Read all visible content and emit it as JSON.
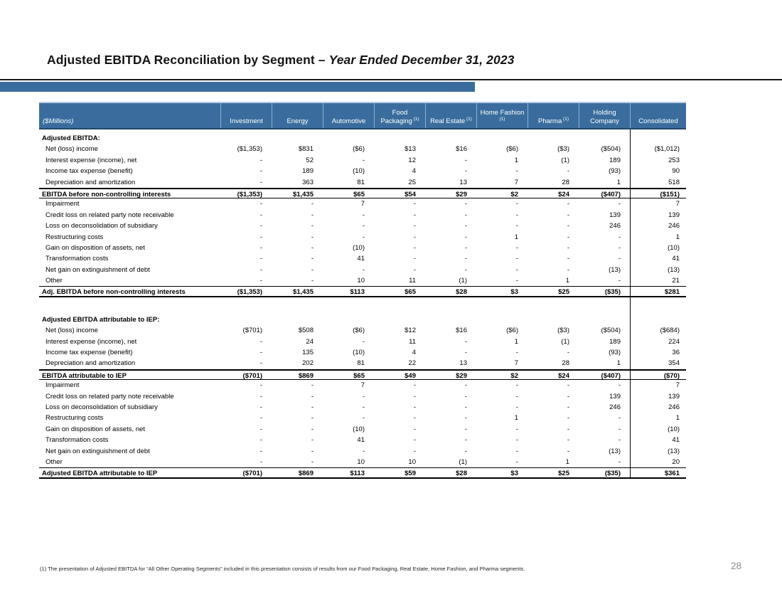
{
  "title": {
    "main": "Adjusted EBITDA Reconciliation by Segment – ",
    "emphasis": "Year Ended December 31, 2023"
  },
  "page_number": "28",
  "footnote": "(1) The presentation of Adjusted EBITDA for “All Other Operating Segments” included in this presentation consists of results from our Food Packaging, Real Estate, Home Fashion, and Pharma segments.",
  "table": {
    "unit_label": "($Millions)",
    "footnote_marker": "(1)",
    "columns": [
      {
        "label": "Investment",
        "footnote": false
      },
      {
        "label": "Energy",
        "footnote": false
      },
      {
        "label": "Automotive",
        "footnote": false
      },
      {
        "label": "Food Packaging",
        "footnote": true
      },
      {
        "label": "Real Estate",
        "footnote": true
      },
      {
        "label": "Home Fashion",
        "footnote": true
      },
      {
        "label": "Pharma",
        "footnote": true
      },
      {
        "label": "Holding Company",
        "footnote": false
      },
      {
        "label": "Consolidated",
        "footnote": false
      }
    ],
    "rows": [
      {
        "type": "section",
        "label": "Adjusted EBITDA:"
      },
      {
        "type": "detail",
        "label": "Net (loss) income",
        "values": [
          "($1,353)",
          "$831",
          "($6)",
          "$13",
          "$16",
          "($6)",
          "($3)",
          "($504)",
          "($1,012)"
        ]
      },
      {
        "type": "detail",
        "label": "Interest expense (income), net",
        "values": [
          "-",
          "52",
          "-",
          "12",
          "-",
          "1",
          "(1)",
          "189",
          "253"
        ]
      },
      {
        "type": "detail",
        "label": "Income tax expense (benefit)",
        "values": [
          "-",
          "189",
          "(10)",
          "4",
          "-",
          "-",
          "-",
          "(93)",
          "90"
        ]
      },
      {
        "type": "detail",
        "label": "Depreciation and amortization",
        "values": [
          "-",
          "363",
          "81",
          "25",
          "13",
          "7",
          "28",
          "1",
          "518"
        ]
      },
      {
        "type": "total",
        "label": "EBITDA before non-controlling interests",
        "values": [
          "($1,353)",
          "$1,435",
          "$65",
          "$54",
          "$29",
          "$2",
          "$24",
          "($407)",
          "($151)"
        ]
      },
      {
        "type": "detail",
        "label": "Impairment",
        "values": [
          "-",
          "-",
          "7",
          "-",
          "-",
          "-",
          "-",
          "-",
          "7"
        ]
      },
      {
        "type": "detail",
        "label": "Credit loss on related party note receivable",
        "values": [
          "-",
          "-",
          "-",
          "-",
          "-",
          "-",
          "-",
          "139",
          "139"
        ]
      },
      {
        "type": "detail",
        "label": "Loss on deconsolidation of subsidiary",
        "values": [
          "-",
          "-",
          "-",
          "-",
          "-",
          "-",
          "-",
          "246",
          "246"
        ]
      },
      {
        "type": "detail",
        "label": "Restructuring costs",
        "values": [
          "-",
          "-",
          "-",
          "-",
          "-",
          "1",
          "-",
          "-",
          "1"
        ]
      },
      {
        "type": "detail",
        "label": "Gain on disposition of assets, net",
        "values": [
          "-",
          "-",
          "(10)",
          "-",
          "-",
          "-",
          "-",
          "-",
          "(10)"
        ]
      },
      {
        "type": "detail",
        "label": "Transformation costs",
        "values": [
          "-",
          "-",
          "41",
          "-",
          "-",
          "-",
          "-",
          "-",
          "41"
        ]
      },
      {
        "type": "detail",
        "label": "Net gain on extinguishment of debt",
        "values": [
          "-",
          "-",
          "-",
          "-",
          "-",
          "-",
          "-",
          "(13)",
          "(13)"
        ]
      },
      {
        "type": "detail",
        "label": "Other",
        "values": [
          "-",
          "-",
          "10",
          "11",
          "(1)",
          "-",
          "1",
          "-",
          "21"
        ]
      },
      {
        "type": "grandtotal",
        "label": "Adj. EBITDA before non-controlling interests",
        "values": [
          "($1,353)",
          "$1,435",
          "$113",
          "$65",
          "$28",
          "$3",
          "$25",
          "($35)",
          "$281"
        ]
      },
      {
        "type": "spacer"
      },
      {
        "type": "section",
        "label": "Adjusted EBITDA attributable to IEP:"
      },
      {
        "type": "detail",
        "label": "Net (loss) income",
        "values": [
          "($701)",
          "$508",
          "($6)",
          "$12",
          "$16",
          "($6)",
          "($3)",
          "($504)",
          "($684)"
        ]
      },
      {
        "type": "detail",
        "label": "Interest expense (income), net",
        "values": [
          "-",
          "24",
          "-",
          "11",
          "-",
          "1",
          "(1)",
          "189",
          "224"
        ]
      },
      {
        "type": "detail",
        "label": "Income tax expense (benefit)",
        "values": [
          "-",
          "135",
          "(10)",
          "4",
          "-",
          "-",
          "-",
          "(93)",
          "36"
        ]
      },
      {
        "type": "detail",
        "label": "Depreciation and amortization",
        "values": [
          "-",
          "202",
          "81",
          "22",
          "13",
          "7",
          "28",
          "1",
          "354"
        ]
      },
      {
        "type": "total",
        "label": "EBITDA attributable to IEP",
        "values": [
          "($701)",
          "$869",
          "$65",
          "$49",
          "$29",
          "$2",
          "$24",
          "($407)",
          "($70)"
        ]
      },
      {
        "type": "detail",
        "label": "Impairment",
        "values": [
          "-",
          "-",
          "7",
          "-",
          "-",
          "-",
          "-",
          "-",
          "7"
        ]
      },
      {
        "type": "detail",
        "label": "Credit loss on related party note receivable",
        "values": [
          "-",
          "-",
          "-",
          "-",
          "-",
          "-",
          "-",
          "139",
          "139"
        ]
      },
      {
        "type": "detail",
        "label": "Loss on deconsolidation of subsidiary",
        "values": [
          "-",
          "-",
          "-",
          "-",
          "-",
          "-",
          "-",
          "246",
          "246"
        ]
      },
      {
        "type": "detail",
        "label": "Restructuring costs",
        "values": [
          "-",
          "-",
          "-",
          "-",
          "-",
          "1",
          "-",
          "-",
          "1"
        ]
      },
      {
        "type": "detail",
        "label": "Gain on disposition of assets, net",
        "values": [
          "-",
          "-",
          "(10)",
          "-",
          "-",
          "-",
          "-",
          "-",
          "(10)"
        ]
      },
      {
        "type": "detail",
        "label": "Transformation costs",
        "values": [
          "-",
          "-",
          "41",
          "-",
          "-",
          "-",
          "-",
          "-",
          "41"
        ]
      },
      {
        "type": "detail",
        "label": "Net gain on extinguishment of debt",
        "values": [
          "-",
          "-",
          "-",
          "-",
          "-",
          "-",
          "-",
          "(13)",
          "(13)"
        ]
      },
      {
        "type": "detail",
        "label": "Other",
        "values": [
          "-",
          "-",
          "10",
          "10",
          "(1)",
          "-",
          "1",
          "-",
          "20"
        ]
      },
      {
        "type": "grandtotal",
        "label": "Adjusted EBITDA attributable to IEP",
        "values": [
          "($701)",
          "$869",
          "$113",
          "$59",
          "$28",
          "$3",
          "$25",
          "($35)",
          "$361"
        ]
      }
    ]
  }
}
